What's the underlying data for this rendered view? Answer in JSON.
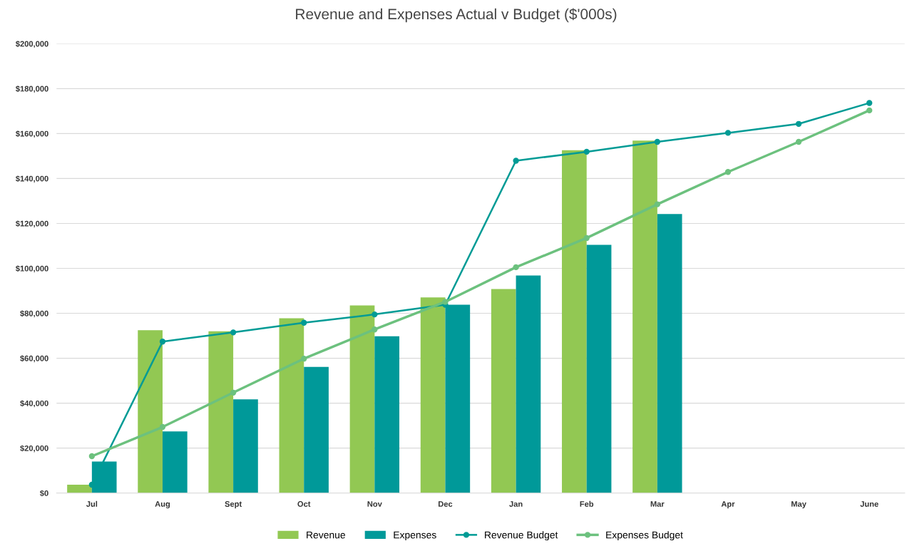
{
  "chart_data": {
    "type": "bar",
    "title": "Revenue and Expenses Actual v Budget ($'000s)",
    "categories": [
      "Jul",
      "Aug",
      "Sept",
      "Oct",
      "Nov",
      "Dec",
      "Jan",
      "Feb",
      "Mar",
      "Apr",
      "May",
      "June"
    ],
    "series": [
      {
        "name": "Revenue",
        "color": "#92c853",
        "values": [
          3700,
          72500,
          72000,
          77800,
          83500,
          87100,
          90800,
          152600,
          156900,
          null,
          null,
          null
        ]
      },
      {
        "name": "Expenses",
        "color": "#009999",
        "values": [
          14000,
          27400,
          41700,
          56100,
          69800,
          83800,
          96800,
          110500,
          124200,
          null,
          null,
          null
        ]
      },
      {
        "name": "Revenue Budget",
        "type": "line",
        "color": "#009b95",
        "values": [
          3700,
          67400,
          71500,
          75800,
          79500,
          83800,
          147900,
          151900,
          156300,
          160300,
          164300,
          173600
        ]
      },
      {
        "name": "Expenses Budget",
        "type": "line",
        "color": "#6cc17e",
        "values": [
          16400,
          29400,
          44700,
          59800,
          72800,
          85100,
          100500,
          113500,
          128500,
          142900,
          156300,
          170300
        ]
      }
    ],
    "ylim": [
      0,
      200000
    ],
    "yticks": [
      {
        "value": 0,
        "label": "$0"
      },
      {
        "value": 20000,
        "label": "$20,000"
      },
      {
        "value": 40000,
        "label": "$40,000"
      },
      {
        "value": 60000,
        "label": "$60,000"
      },
      {
        "value": 80000,
        "label": "$80,000"
      },
      {
        "value": 100000,
        "label": "$100,000"
      },
      {
        "value": 120000,
        "label": "$120,000"
      },
      {
        "value": 140000,
        "label": "$140,000"
      },
      {
        "value": 160000,
        "label": "$160,000"
      },
      {
        "value": 180000,
        "label": "$180,000"
      },
      {
        "value": 200000,
        "label": "$200,000"
      }
    ],
    "grid": "y",
    "legend": "bottom",
    "marker": "circle",
    "line_style": "solid"
  }
}
